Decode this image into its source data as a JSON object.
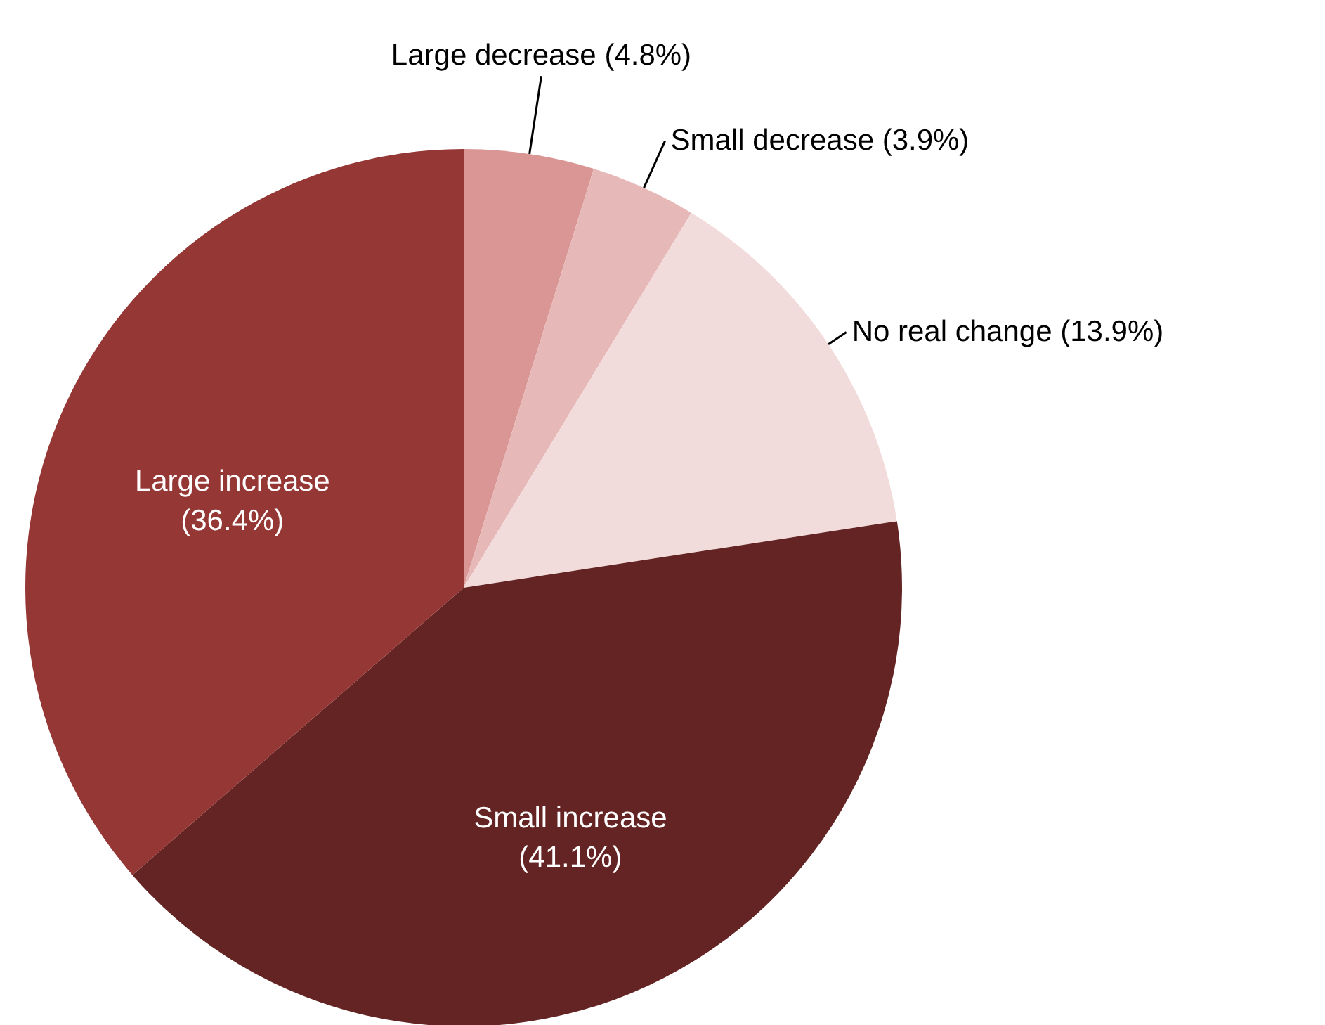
{
  "chart_data": {
    "type": "pie",
    "categories": [
      "Large decrease",
      "Small decrease",
      "No real change",
      "Small increase",
      "Large increase"
    ],
    "values": [
      4.8,
      3.9,
      13.9,
      41.1,
      36.4
    ],
    "value_labels": [
      "(4.8%)",
      "(3.9%)",
      "(13.9%)",
      "(41.1%)",
      "(36.4%)"
    ],
    "colors": [
      "#d99694",
      "#e6b9b8",
      "#f2dcdb",
      "#632423",
      "#953735"
    ]
  }
}
